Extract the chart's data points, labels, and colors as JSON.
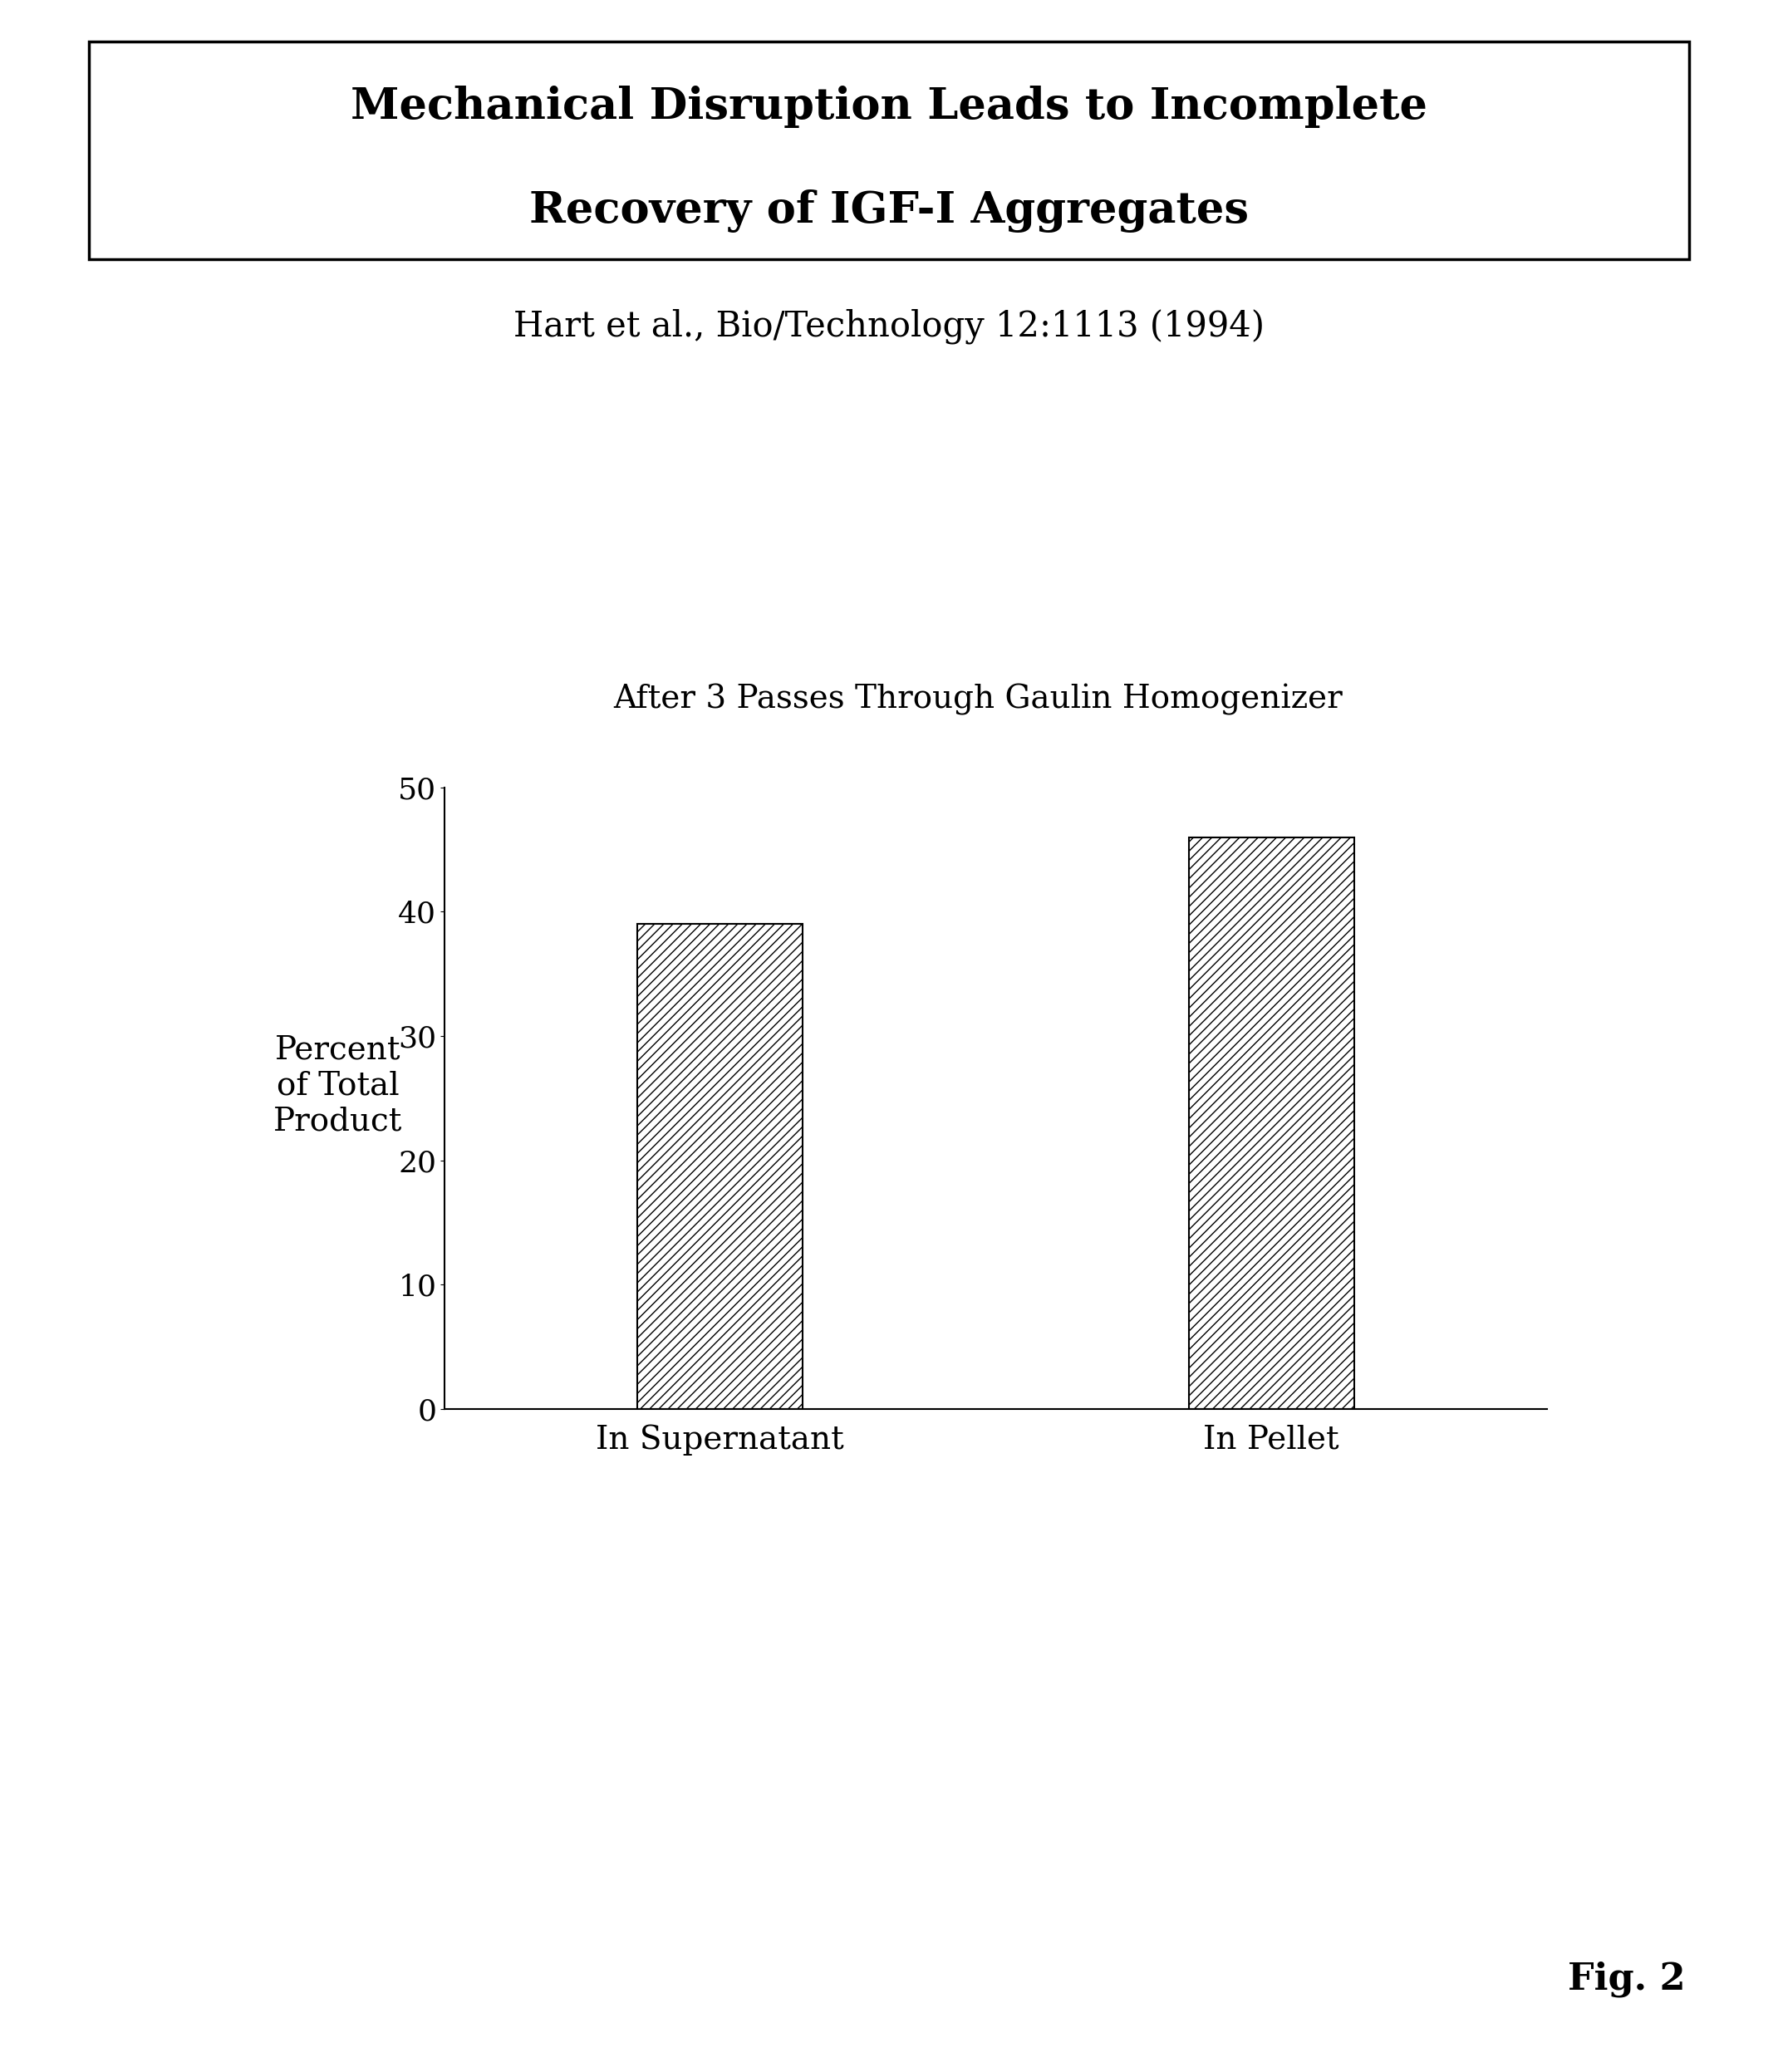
{
  "title_line1": "Mechanical Disruption Leads to Incomplete",
  "title_line2": "Recovery of IGF-I Aggregates",
  "subtitle": "Hart et al., Bio/Technology 12:1113 (1994)",
  "chart_title": "After 3 Passes Through Gaulin Homogenizer",
  "categories": [
    "In Supernatant",
    "In Pellet"
  ],
  "values": [
    39,
    46
  ],
  "ylabel_line1": "Percent",
  "ylabel_line2": "of Total",
  "ylabel_line3": "Product",
  "ylim": [
    0,
    50
  ],
  "yticks": [
    0,
    10,
    20,
    30,
    40,
    50
  ],
  "fig_label": "Fig. 2",
  "bar_color": "#ffffff",
  "bar_edgecolor": "#000000",
  "hatch_pattern": "///",
  "background_color": "#ffffff",
  "title_fontsize": 38,
  "subtitle_fontsize": 30,
  "chart_title_fontsize": 28,
  "ylabel_fontsize": 28,
  "tick_fontsize": 26,
  "xlabel_fontsize": 28,
  "fig_label_fontsize": 32
}
